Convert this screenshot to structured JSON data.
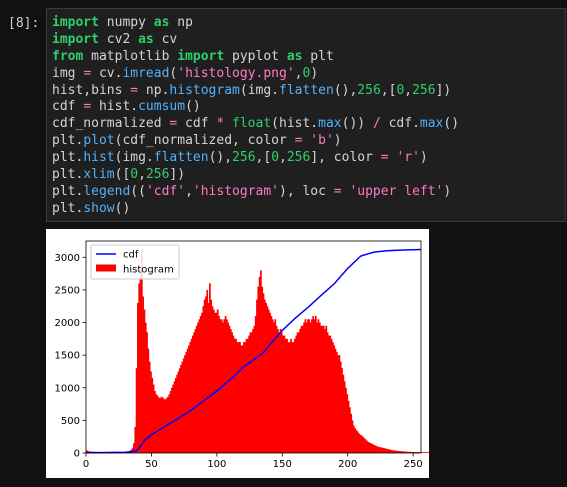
{
  "cell": {
    "prompt": "[8]:",
    "code_lines": [
      [
        {
          "t": "import",
          "c": "kw"
        },
        {
          "t": " numpy ",
          "c": "tx"
        },
        {
          "t": "as",
          "c": "kw"
        },
        {
          "t": " np",
          "c": "tx"
        }
      ],
      [
        {
          "t": "import",
          "c": "kw"
        },
        {
          "t": " cv2 ",
          "c": "tx"
        },
        {
          "t": "as",
          "c": "kw"
        },
        {
          "t": " cv",
          "c": "tx"
        }
      ],
      [
        {
          "t": "from",
          "c": "kw"
        },
        {
          "t": " matplotlib ",
          "c": "tx"
        },
        {
          "t": "import",
          "c": "kw"
        },
        {
          "t": " pyplot ",
          "c": "tx"
        },
        {
          "t": "as",
          "c": "kw"
        },
        {
          "t": " plt",
          "c": "tx"
        }
      ],
      [
        {
          "t": "img ",
          "c": "tx"
        },
        {
          "t": "=",
          "c": "op"
        },
        {
          "t": " cv.",
          "c": "tx"
        },
        {
          "t": "imread",
          "c": "fn"
        },
        {
          "t": "(",
          "c": "tx"
        },
        {
          "t": "'histology.png'",
          "c": "str"
        },
        {
          "t": ",",
          "c": "tx"
        },
        {
          "t": "0",
          "c": "num"
        },
        {
          "t": ")",
          "c": "tx"
        }
      ],
      [
        {
          "t": "hist,bins ",
          "c": "tx"
        },
        {
          "t": "=",
          "c": "op"
        },
        {
          "t": " np.",
          "c": "tx"
        },
        {
          "t": "histogram",
          "c": "fn"
        },
        {
          "t": "(img.",
          "c": "tx"
        },
        {
          "t": "flatten",
          "c": "fn"
        },
        {
          "t": "(),",
          "c": "tx"
        },
        {
          "t": "256",
          "c": "num"
        },
        {
          "t": ",[",
          "c": "tx"
        },
        {
          "t": "0",
          "c": "num"
        },
        {
          "t": ",",
          "c": "tx"
        },
        {
          "t": "256",
          "c": "num"
        },
        {
          "t": "])",
          "c": "tx"
        }
      ],
      [
        {
          "t": "cdf ",
          "c": "tx"
        },
        {
          "t": "=",
          "c": "op"
        },
        {
          "t": " hist.",
          "c": "tx"
        },
        {
          "t": "cumsum",
          "c": "fn"
        },
        {
          "t": "()",
          "c": "tx"
        }
      ],
      [
        {
          "t": "cdf_normalized ",
          "c": "tx"
        },
        {
          "t": "=",
          "c": "op"
        },
        {
          "t": " cdf ",
          "c": "tx"
        },
        {
          "t": "*",
          "c": "op"
        },
        {
          "t": " ",
          "c": "tx"
        },
        {
          "t": "float",
          "c": "num"
        },
        {
          "t": "(hist.",
          "c": "tx"
        },
        {
          "t": "max",
          "c": "fn"
        },
        {
          "t": "()) ",
          "c": "tx"
        },
        {
          "t": "/",
          "c": "op"
        },
        {
          "t": " cdf.",
          "c": "tx"
        },
        {
          "t": "max",
          "c": "fn"
        },
        {
          "t": "()",
          "c": "tx"
        }
      ],
      [
        {
          "t": "plt.",
          "c": "tx"
        },
        {
          "t": "plot",
          "c": "fn"
        },
        {
          "t": "(cdf_normalized, color ",
          "c": "tx"
        },
        {
          "t": "=",
          "c": "op"
        },
        {
          "t": " ",
          "c": "tx"
        },
        {
          "t": "'b'",
          "c": "str"
        },
        {
          "t": ")",
          "c": "tx"
        }
      ],
      [
        {
          "t": "plt.",
          "c": "tx"
        },
        {
          "t": "hist",
          "c": "fn"
        },
        {
          "t": "(img.",
          "c": "tx"
        },
        {
          "t": "flatten",
          "c": "fn"
        },
        {
          "t": "(),",
          "c": "tx"
        },
        {
          "t": "256",
          "c": "num"
        },
        {
          "t": ",[",
          "c": "tx"
        },
        {
          "t": "0",
          "c": "num"
        },
        {
          "t": ",",
          "c": "tx"
        },
        {
          "t": "256",
          "c": "num"
        },
        {
          "t": "], color ",
          "c": "tx"
        },
        {
          "t": "=",
          "c": "op"
        },
        {
          "t": " ",
          "c": "tx"
        },
        {
          "t": "'r'",
          "c": "str"
        },
        {
          "t": ")",
          "c": "tx"
        }
      ],
      [
        {
          "t": "plt.",
          "c": "tx"
        },
        {
          "t": "xlim",
          "c": "fn"
        },
        {
          "t": "([",
          "c": "tx"
        },
        {
          "t": "0",
          "c": "num"
        },
        {
          "t": ",",
          "c": "tx"
        },
        {
          "t": "256",
          "c": "num"
        },
        {
          "t": "])",
          "c": "tx"
        }
      ],
      [
        {
          "t": "plt.",
          "c": "tx"
        },
        {
          "t": "legend",
          "c": "fn"
        },
        {
          "t": "((",
          "c": "tx"
        },
        {
          "t": "'cdf'",
          "c": "str"
        },
        {
          "t": ",",
          "c": "tx"
        },
        {
          "t": "'histogram'",
          "c": "str"
        },
        {
          "t": "), loc ",
          "c": "tx"
        },
        {
          "t": "=",
          "c": "op"
        },
        {
          "t": " ",
          "c": "tx"
        },
        {
          "t": "'upper left'",
          "c": "str"
        },
        {
          "t": ")",
          "c": "tx"
        }
      ],
      [
        {
          "t": "plt.",
          "c": "tx"
        },
        {
          "t": "show",
          "c": "fn"
        },
        {
          "t": "()",
          "c": "tx"
        }
      ]
    ]
  },
  "colors": {
    "background": "#111111",
    "cell_bg": "#1f1f1f",
    "hist": "#ff0000",
    "cdf": "#0000ff"
  },
  "chart_data": {
    "type": "bar",
    "xlim": [
      0,
      256
    ],
    "ylim": [
      0,
      3250
    ],
    "xticks": [
      "0",
      "50",
      "100",
      "150",
      "200",
      "250"
    ],
    "yticks": [
      "0",
      "500",
      "1000",
      "1500",
      "2000",
      "2500",
      "3000"
    ],
    "legend": [
      "cdf",
      "histogram"
    ],
    "legend_loc": "upper left",
    "series": [
      {
        "name": "histogram",
        "color": "#ff0000",
        "bins": 256,
        "values": [
          40,
          30,
          25,
          22,
          20,
          20,
          18,
          18,
          15,
          15,
          12,
          12,
          12,
          10,
          10,
          10,
          10,
          10,
          10,
          10,
          10,
          10,
          10,
          10,
          10,
          10,
          10,
          10,
          10,
          12,
          15,
          18,
          25,
          35,
          50,
          80,
          150,
          400,
          1300,
          2300,
          2600,
          2700,
          3120,
          2400,
          2200,
          2000,
          1850,
          1600,
          1400,
          1250,
          1150,
          1050,
          950,
          900,
          880,
          850,
          840,
          860,
          850,
          830,
          820,
          840,
          860,
          900,
          950,
          1000,
          1050,
          1100,
          1150,
          1200,
          1250,
          1300,
          1350,
          1400,
          1450,
          1500,
          1550,
          1600,
          1650,
          1700,
          1750,
          1800,
          1850,
          1900,
          1950,
          2000,
          2050,
          2100,
          2150,
          2250,
          2350,
          2400,
          2500,
          2300,
          2600,
          2350,
          2250,
          2200,
          2150,
          2150,
          2200,
          2100,
          2050,
          2050,
          2000,
          2050,
          2100,
          2050,
          2000,
          1950,
          1900,
          1850,
          1800,
          1750,
          1750,
          1700,
          1700,
          1700,
          1650,
          1650,
          1700,
          1700,
          1750,
          1750,
          1800,
          1850,
          1850,
          1900,
          1950,
          2100,
          2350,
          2550,
          2700,
          2800,
          2550,
          2450,
          2350,
          2300,
          2250,
          2200,
          2150,
          2100,
          2050,
          2000,
          2050,
          1950,
          1900,
          1850,
          1900,
          1850,
          1800,
          1800,
          1750,
          1750,
          1700,
          1700,
          1750,
          1700,
          1700,
          1750,
          1800,
          1850,
          1850,
          1900,
          1950,
          1950,
          2000,
          2050,
          2000,
          2050,
          2050,
          2000,
          2050,
          2100,
          2050,
          2100,
          2000,
          2050,
          2000,
          1950,
          1950,
          1950,
          1900,
          1950,
          1850,
          1800,
          1800,
          1750,
          1700,
          1650,
          1600,
          1550,
          1500,
          1500,
          1400,
          1300,
          1200,
          1100,
          1000,
          900,
          800,
          700,
          600,
          500,
          420,
          380,
          350,
          330,
          300,
          280,
          270,
          250,
          230,
          210,
          190,
          170,
          160,
          150,
          140,
          130,
          120,
          110,
          100,
          95,
          90,
          85,
          80,
          75,
          70,
          65,
          60,
          55,
          50,
          45,
          40,
          40,
          35,
          35,
          30,
          30,
          28,
          26,
          24,
          22,
          20,
          20,
          18,
          18,
          16,
          16,
          15,
          15,
          14,
          14,
          13,
          13,
          12,
          12,
          12,
          12,
          12,
          12,
          12,
          12,
          12,
          12
        ]
      },
      {
        "name": "cdf",
        "color": "#0000ff",
        "points": [
          [
            0,
            5
          ],
          [
            30,
            10
          ],
          [
            38,
            30
          ],
          [
            40,
            60
          ],
          [
            45,
            200
          ],
          [
            50,
            280
          ],
          [
            60,
            400
          ],
          [
            80,
            650
          ],
          [
            100,
            950
          ],
          [
            110,
            1120
          ],
          [
            120,
            1310
          ],
          [
            135,
            1530
          ],
          [
            150,
            1880
          ],
          [
            160,
            2070
          ],
          [
            170,
            2240
          ],
          [
            180,
            2420
          ],
          [
            190,
            2600
          ],
          [
            200,
            2830
          ],
          [
            210,
            3020
          ],
          [
            220,
            3080
          ],
          [
            230,
            3100
          ],
          [
            240,
            3110
          ],
          [
            256,
            3120
          ]
        ]
      }
    ]
  }
}
